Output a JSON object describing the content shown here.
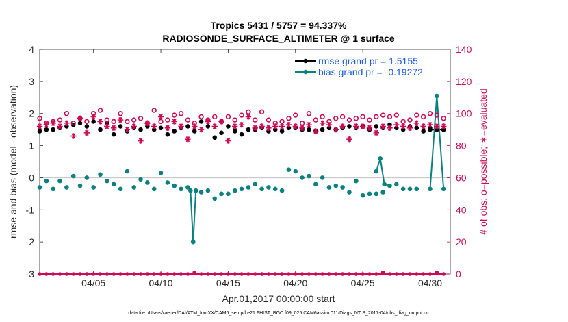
{
  "chart_data": {
    "type": "line",
    "title": "Tropics 5431 / 5757 = 94.337%",
    "subtitle": "RADIOSONDE_SURFACE_ALTIMETER @ 1 surface",
    "xlabel": "Apr.01,2017 00:00:00 start",
    "ylabel": "rmse and bias (model - observation)",
    "ylabel_right": "# of obs: o=possible; ∗=evaluated",
    "footnote": "data file: /Users/raeder/DAI/ATM_forcXX/CAM6_setup/f.e21.FHIST_BGC.f09_025.CAM6assim.011/Diags_NTrS_2017-04/obs_diag_output.nc",
    "xlim": [
      1,
      31.5
    ],
    "ylim": [
      -3,
      4
    ],
    "ylim_right": [
      0,
      140
    ],
    "x_ticks": [
      5,
      10,
      15,
      20,
      25,
      30
    ],
    "x_tick_labels": [
      "04/05",
      "04/10",
      "04/15",
      "04/20",
      "04/25",
      "04/30"
    ],
    "y_ticks": [
      -3,
      -2,
      -1,
      0,
      1,
      2,
      3,
      4
    ],
    "y_tick_labels": [
      "-3",
      "-2",
      "-1",
      "0",
      "1",
      "2",
      "3",
      "4"
    ],
    "y_ticks_right": [
      0,
      20,
      40,
      60,
      80,
      100,
      120,
      140
    ],
    "y_tick_labels_right": [
      "0",
      "20",
      "40",
      "60",
      "80",
      "100",
      "120",
      "140"
    ],
    "legend": [
      {
        "label": "rmse grand pr = 1.5155",
        "color": "#000000"
      },
      {
        "label": "bias grand pr = -0.19272",
        "color": "#0a8080"
      }
    ],
    "series": [
      {
        "name": "rmse",
        "color": "#000000",
        "connected_indices": [
          61,
          62,
          63,
          64
        ],
        "x": [
          1.0,
          1.5,
          2.0,
          2.5,
          3.0,
          3.5,
          4.0,
          4.5,
          5.0,
          5.5,
          6.0,
          6.5,
          7.0,
          7.5,
          8.0,
          8.5,
          9.0,
          9.5,
          10.0,
          10.5,
          11.0,
          11.5,
          12.0,
          12.5,
          13.0,
          13.5,
          14.0,
          14.5,
          15.0,
          15.5,
          16.0,
          16.5,
          17.0,
          17.5,
          18.0,
          18.5,
          19.0,
          19.5,
          20.0,
          20.5,
          21.0,
          21.5,
          22.0,
          22.5,
          23.0,
          23.5,
          24.0,
          24.5,
          25.0,
          25.5,
          26.0,
          26.5,
          27.0,
          27.5,
          28.0,
          28.5,
          29.0,
          29.5,
          30.0,
          30.5,
          31.0,
          30.0,
          30.5,
          31.0,
          31.0
        ],
        "values": [
          1.45,
          1.5,
          1.5,
          1.55,
          1.6,
          1.65,
          1.7,
          1.6,
          1.75,
          1.5,
          1.7,
          1.35,
          1.6,
          1.45,
          1.55,
          1.5,
          1.6,
          1.5,
          1.55,
          1.35,
          1.45,
          1.55,
          1.6,
          1.45,
          1.75,
          1.6,
          1.25,
          1.4,
          1.6,
          1.45,
          1.35,
          1.5,
          1.5,
          1.55,
          1.45,
          1.5,
          1.45,
          1.55,
          1.55,
          1.5,
          1.5,
          1.45,
          1.5,
          1.55,
          1.5,
          1.55,
          1.6,
          1.55,
          1.6,
          1.5,
          1.6,
          1.55,
          1.65,
          1.55,
          1.5,
          1.6,
          1.55,
          1.45,
          1.55,
          1.5,
          1.5,
          1.5,
          1.5,
          1.5,
          1.5
        ]
      },
      {
        "name": "bias",
        "color": "#0a8080",
        "connected_indices": [
          23,
          24,
          25,
          54,
          55,
          56,
          57,
          62,
          63,
          64
        ],
        "x": [
          1.0,
          1.5,
          2.0,
          2.5,
          3.0,
          3.5,
          4.0,
          4.5,
          5.0,
          5.5,
          6.0,
          6.5,
          7.0,
          7.5,
          8.0,
          8.5,
          9.0,
          9.5,
          10.0,
          10.5,
          11.0,
          11.5,
          12.0,
          12.2,
          12.4,
          12.6,
          13.0,
          13.5,
          14.0,
          14.5,
          15.0,
          15.5,
          16.0,
          16.5,
          17.0,
          17.5,
          18.0,
          18.5,
          19.0,
          19.5,
          20.0,
          20.5,
          21.0,
          21.5,
          22.0,
          22.5,
          23.0,
          23.5,
          24.0,
          24.5,
          25.0,
          25.5,
          26.0,
          26.5,
          26.0,
          26.3,
          26.6,
          27.0,
          27.5,
          28.0,
          28.5,
          29.0,
          30.0,
          30.5,
          31.0
        ],
        "values": [
          -0.3,
          -0.1,
          -0.35,
          -0.1,
          -0.3,
          0.05,
          -0.25,
          0.0,
          -0.3,
          0.1,
          -0.1,
          -0.2,
          -0.35,
          0.2,
          -0.3,
          -0.05,
          -0.15,
          -0.35,
          0.15,
          -0.15,
          -0.25,
          -0.35,
          -0.3,
          -0.4,
          -2.0,
          -0.4,
          -0.45,
          -0.4,
          -0.65,
          -0.5,
          -0.5,
          -0.4,
          -0.35,
          -0.3,
          -0.2,
          -0.35,
          -0.3,
          -0.35,
          -0.4,
          0.25,
          0.2,
          0.0,
          0.05,
          -0.2,
          0.0,
          -0.3,
          -0.25,
          -0.3,
          -0.45,
          -0.1,
          -0.55,
          -0.5,
          -0.5,
          -0.45,
          0.2,
          0.6,
          -0.2,
          -0.25,
          -0.2,
          -0.35,
          -0.35,
          -0.35,
          -0.35,
          2.55,
          -0.35
        ]
      },
      {
        "name": "possible",
        "color": "#cc0a55",
        "marker": "open-circle",
        "axis": "right",
        "x": [
          1.0,
          1.5,
          2.0,
          2.5,
          3.0,
          3.5,
          4.0,
          4.5,
          5.0,
          5.5,
          6.0,
          6.5,
          7.0,
          7.5,
          8.0,
          8.5,
          9.0,
          9.5,
          10.0,
          10.5,
          11.0,
          11.5,
          12.0,
          12.5,
          13.0,
          13.5,
          14.0,
          14.5,
          15.0,
          15.5,
          16.0,
          16.5,
          17.0,
          17.5,
          18.0,
          18.5,
          19.0,
          19.5,
          20.0,
          20.5,
          21.0,
          21.5,
          22.0,
          22.5,
          23.0,
          23.5,
          24.0,
          24.5,
          25.0,
          25.5,
          26.0,
          26.5,
          27.0,
          27.5,
          28.0,
          28.5,
          29.0,
          29.5,
          30.0,
          30.5,
          31.0
        ],
        "values": [
          97,
          94,
          95,
          96,
          100,
          94,
          97,
          95,
          100,
          102,
          96,
          95,
          100,
          95,
          96,
          97,
          94,
          102,
          95,
          96,
          99,
          100,
          96,
          94,
          98,
          96,
          98,
          95,
          98,
          96,
          99,
          101,
          96,
          101,
          96,
          94,
          95,
          97,
          99,
          94,
          100,
          96,
          98,
          95,
          97,
          98,
          96,
          97,
          98,
          96,
          98,
          99,
          98,
          99,
          95,
          96,
          99,
          98,
          100,
          99,
          97
        ]
      },
      {
        "name": "evaluated",
        "color": "#cc0a55",
        "marker": "asterisk",
        "axis": "right",
        "x": [
          1.0,
          1.5,
          2.0,
          2.5,
          3.0,
          3.5,
          4.0,
          4.5,
          5.0,
          5.5,
          6.0,
          6.5,
          7.0,
          7.5,
          8.0,
          8.5,
          9.0,
          9.5,
          10.0,
          10.5,
          11.0,
          11.5,
          12.0,
          12.5,
          13.0,
          13.5,
          14.0,
          14.5,
          15.0,
          15.5,
          16.0,
          16.5,
          17.0,
          17.5,
          18.0,
          18.5,
          19.0,
          19.5,
          20.0,
          20.5,
          21.0,
          21.5,
          22.0,
          22.5,
          23.0,
          23.5,
          24.0,
          24.5,
          25.0,
          25.5,
          26.0,
          26.5,
          27.0,
          27.5,
          28.0,
          28.5,
          29.0,
          29.5,
          30.0,
          30.5,
          31.0
        ],
        "values": [
          92,
          93,
          94,
          92,
          94,
          86,
          97,
          88,
          98,
          95,
          92,
          91,
          96,
          90,
          92,
          83,
          94,
          92,
          98,
          91,
          95,
          92,
          84,
          92,
          90,
          95,
          92,
          95,
          83,
          92,
          93,
          98,
          91,
          92,
          91,
          92,
          92,
          93,
          92,
          91,
          93,
          89,
          94,
          93,
          90,
          92,
          84,
          92,
          92,
          91,
          88,
          92,
          91,
          93,
          92,
          91,
          94,
          92,
          93,
          92,
          92
        ]
      },
      {
        "name": "zero-line-counts",
        "color": "#cc0a55",
        "axis": "left",
        "x": [
          1.0,
          1.5,
          2.0,
          2.5,
          3.0,
          3.5,
          4.0,
          4.5,
          5.0,
          5.5,
          6.0,
          6.5,
          7.0,
          7.5,
          8.0,
          8.5,
          9.0,
          9.5,
          10.0,
          10.5,
          11.0,
          11.5,
          12.0,
          12.5,
          13.0,
          13.5,
          14.0,
          14.5,
          15.0,
          15.5,
          16.0,
          16.5,
          17.0,
          17.5,
          18.0,
          18.5,
          19.0,
          19.5,
          20.0,
          20.5,
          21.0,
          21.5,
          22.0,
          22.5,
          23.0,
          23.5,
          24.0,
          24.5,
          25.0,
          25.5,
          26.0,
          26.5,
          27.0,
          27.5,
          28.0,
          28.5,
          29.0,
          29.5,
          30.0,
          30.5,
          31.0
        ],
        "values": [
          -3,
          -3,
          -3,
          -3,
          -3,
          -3,
          -3,
          -3,
          -3,
          -3,
          -3,
          -3,
          -3,
          -3,
          -3,
          -3,
          -3,
          -3,
          -3,
          -3,
          -3,
          -3,
          -3,
          -2.95,
          -3,
          -3,
          -3,
          -3,
          -3,
          -3,
          -3,
          -3,
          -3,
          -3,
          -3,
          -3,
          -3,
          -3,
          -3,
          -3,
          -3,
          -3,
          -3,
          -3,
          -3,
          -3,
          -3,
          -3,
          -3,
          -3,
          -3,
          -2.95,
          -3,
          -3,
          -3,
          -3,
          -3,
          -3,
          -3,
          -2.95,
          -3
        ]
      }
    ]
  }
}
